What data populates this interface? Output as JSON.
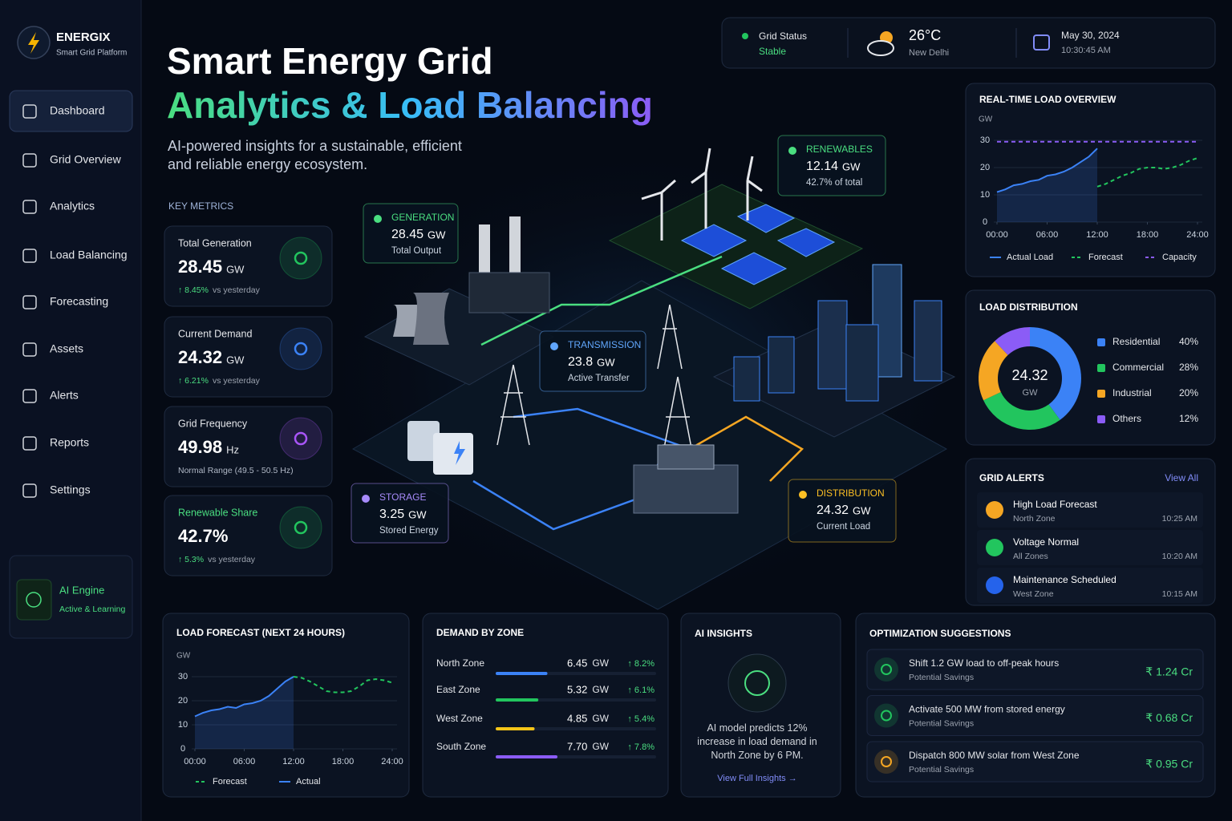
{
  "brand": {
    "name": "ENERGIX",
    "tagline": "Smart Grid Platform"
  },
  "nav": {
    "items": [
      "Dashboard",
      "Grid Overview",
      "Analytics",
      "Load Balancing",
      "Forecasting",
      "Assets",
      "Alerts",
      "Reports",
      "Settings"
    ],
    "active": 0
  },
  "ai_engine": {
    "title": "AI Engine",
    "status": "Active & Learning"
  },
  "hero": {
    "title": "Smart Energy Grid",
    "highlight": "Analytics & Load Balancing",
    "description": "AI-powered insights for a sustainable, efficient and reliable energy ecosystem."
  },
  "status": {
    "grid_label": "Grid Status",
    "grid_value": "Stable",
    "temperature": "26°C",
    "city": "New Delhi",
    "date": "May 30, 2024",
    "time": "10:30:45 AM"
  },
  "key_metrics": {
    "title": "KEY METRICS",
    "items": [
      {
        "label": "Total Generation",
        "value": "28.45",
        "unit": "GW",
        "change": "↑ 8.45%",
        "note": "vs yesterday",
        "color": "#22c55e"
      },
      {
        "label": "Current Demand",
        "value": "24.32",
        "unit": "GW",
        "change": "↑ 6.21%",
        "note": "vs yesterday",
        "color": "#3b82f6"
      },
      {
        "label": "Grid Frequency",
        "value": "49.98",
        "unit": "Hz",
        "note": "Normal Range (49.5 - 50.5 Hz)",
        "color": "#a855f7"
      },
      {
        "label": "Renewable Share",
        "value": "42.7%",
        "change": "↑ 5.3%",
        "note": "vs yesterday",
        "color": "#22c55e"
      }
    ]
  },
  "map_callouts": [
    {
      "label": "GENERATION",
      "value": "28.45",
      "unit": "GW",
      "note": "Total Output",
      "color": "#4ade80"
    },
    {
      "label": "RENEWABLES",
      "value": "12.14",
      "unit": "GW",
      "note": "42.7% of total",
      "color": "#4ade80"
    },
    {
      "label": "TRANSMISSION",
      "value": "23.8",
      "unit": "GW",
      "note": "Active Transfer",
      "color": "#60a5fa"
    },
    {
      "label": "STORAGE",
      "value": "3.25",
      "unit": "GW",
      "note": "Stored Energy",
      "color": "#a78bfa"
    },
    {
      "label": "DISTRIBUTION",
      "value": "24.32",
      "unit": "GW",
      "note": "Current Load",
      "color": "#fbbf24"
    }
  ],
  "realtime_load": {
    "type": "line",
    "title": "REAL-TIME LOAD OVERVIEW",
    "y_label": "GW",
    "x": [
      0,
      1,
      2,
      3,
      4,
      5,
      6,
      7,
      8,
      9,
      10,
      11,
      12,
      13,
      14,
      15,
      16,
      17,
      18,
      19,
      20,
      21,
      22,
      23,
      24
    ],
    "xlim": [
      0,
      24
    ],
    "xticks": [
      {
        "value": 0,
        "label": "00:00"
      },
      {
        "value": 6,
        "label": "06:00"
      },
      {
        "value": 12,
        "label": "12:00"
      },
      {
        "value": 18,
        "label": "18:00"
      },
      {
        "value": 24,
        "label": "24:00"
      }
    ],
    "ylim": [
      0,
      30
    ],
    "yticks": [
      0,
      10,
      20,
      30
    ],
    "series": [
      {
        "name": "Actual Load",
        "color": "#3b82f6",
        "area": true,
        "values": [
          11,
          12,
          13.5,
          14,
          15,
          15.5,
          17,
          17.5,
          18.5,
          20,
          22,
          24,
          27,
          null,
          null,
          null,
          null,
          null,
          null,
          null,
          null,
          null,
          null,
          null,
          null
        ]
      },
      {
        "name": "Forecast",
        "color": "#22c55e",
        "dashed": true,
        "values": [
          null,
          null,
          null,
          null,
          null,
          null,
          null,
          null,
          null,
          null,
          null,
          null,
          13,
          14,
          15.5,
          17,
          18,
          19.5,
          20,
          20,
          19.5,
          20,
          21,
          22.5,
          23.5
        ]
      },
      {
        "name": "Capacity",
        "color": "#8b5cf6",
        "dashed": true,
        "values": [
          29.5,
          29.5,
          29.5,
          29.5,
          29.5,
          29.5,
          29.5,
          29.5,
          29.5,
          29.5,
          29.5,
          29.5,
          29.5,
          29.5,
          29.5,
          29.5,
          29.5,
          29.5,
          29.5,
          29.5,
          29.5,
          29.5,
          29.5,
          29.5,
          29.5
        ]
      }
    ]
  },
  "load_distribution": {
    "type": "donut",
    "title": "LOAD DISTRIBUTION",
    "center_value": "24.32",
    "center_unit": "GW",
    "categories": [
      "Residential",
      "Commercial",
      "Industrial",
      "Others"
    ],
    "values": [
      40,
      28,
      20,
      12
    ],
    "value_labels": [
      "40%",
      "28%",
      "20%",
      "12%"
    ],
    "colors": [
      "#3b82f6",
      "#22c55e",
      "#f5a623",
      "#8b5cf6"
    ]
  },
  "grid_alerts": {
    "title": "GRID ALERTS",
    "link": "View All",
    "items": [
      {
        "title": "High Load Forecast",
        "zone": "North Zone",
        "time": "10:25 AM",
        "color": "#f5a623"
      },
      {
        "title": "Voltage Normal",
        "zone": "All Zones",
        "time": "10:20 AM",
        "color": "#22c55e"
      },
      {
        "title": "Maintenance Scheduled",
        "zone": "West Zone",
        "time": "10:15 AM",
        "color": "#2563eb"
      }
    ]
  },
  "load_forecast": {
    "type": "line",
    "title": "LOAD FORECAST (NEXT 24 HOURS)",
    "y_label": "GW",
    "x": [
      0,
      1,
      2,
      3,
      4,
      5,
      6,
      7,
      8,
      9,
      10,
      11,
      12,
      13,
      14,
      15,
      16,
      17,
      18,
      19,
      20,
      21,
      22,
      23,
      24
    ],
    "xlim": [
      0,
      24
    ],
    "xticks": [
      {
        "value": 0,
        "label": "00:00"
      },
      {
        "value": 6,
        "label": "06:00"
      },
      {
        "value": 12,
        "label": "12:00"
      },
      {
        "value": 18,
        "label": "18:00"
      },
      {
        "value": 24,
        "label": "24:00"
      }
    ],
    "ylim": [
      0,
      30
    ],
    "yticks": [
      0,
      10,
      20,
      30
    ],
    "series": [
      {
        "name": "Forecast",
        "color": "#22c55e",
        "dashed": true,
        "values": [
          null,
          null,
          null,
          null,
          null,
          null,
          null,
          null,
          null,
          null,
          null,
          null,
          30,
          29.5,
          28,
          26,
          24,
          23.5,
          23.5,
          24,
          26,
          28.5,
          29,
          28.5,
          27.5
        ]
      },
      {
        "name": "Actual",
        "color": "#3b82f6",
        "area": true,
        "values": [
          13.5,
          15,
          16,
          16.5,
          17.5,
          17,
          18.5,
          19,
          20,
          22,
          25,
          28,
          30,
          null,
          null,
          null,
          null,
          null,
          null,
          null,
          null,
          null,
          null,
          null,
          null
        ]
      }
    ]
  },
  "demand_by_zone": {
    "type": "bar",
    "title": "DEMAND BY ZONE",
    "categories": [
      "North Zone",
      "East Zone",
      "West Zone",
      "South Zone"
    ],
    "values": [
      6.45,
      5.32,
      4.85,
      7.7
    ],
    "value_labels": [
      "6.45",
      "5.32",
      "4.85",
      "7.70"
    ],
    "unit": "GW",
    "changes": [
      "↑ 8.2%",
      "↑ 6.1%",
      "↑ 5.4%",
      "↑ 7.8%"
    ],
    "colors": [
      "#3b82f6",
      "#22c55e",
      "#f5c518",
      "#8b5cf6"
    ],
    "xlim": [
      0,
      20
    ]
  },
  "ai_insights": {
    "title": "AI INSIGHTS",
    "text": "AI model predicts 12% increase in load demand in North Zone by 6 PM.",
    "link": "View Full Insights →"
  },
  "optimization": {
    "title": "OPTIMIZATION SUGGESTIONS",
    "items": [
      {
        "text": "Shift 1.2 GW load to off-peak hours",
        "sub": "Potential Savings",
        "value": "₹ 1.24 Cr",
        "color": "#22c55e"
      },
      {
        "text": "Activate 500 MW from stored energy",
        "sub": "Potential Savings",
        "value": "₹ 0.68 Cr",
        "color": "#22c55e"
      },
      {
        "text": "Dispatch 800 MW solar from West Zone",
        "sub": "Potential Savings",
        "value": "₹ 0.95 Cr",
        "color": "#f5a623"
      }
    ]
  }
}
